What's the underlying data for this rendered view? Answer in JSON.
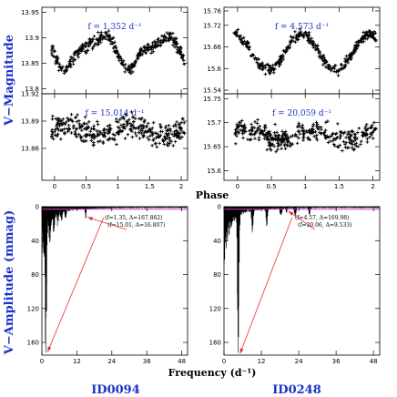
{
  "labels": {
    "v_magnitude": "V−Magnitude",
    "phase": "Phase",
    "v_amplitude": "V−Amplitude (mmag)",
    "frequency": "Frequency (d⁻¹)",
    "id_left": "ID0094",
    "id_right": "ID0248"
  },
  "colors": {
    "label_blue": "#1a33c8",
    "data": "#000000",
    "arrow": "#e03030",
    "noise_line": "#d040d0"
  },
  "chart_data": [
    {
      "type": "scatter",
      "panel": "phase-tl",
      "annotation": "f = 1.352 d⁻¹",
      "xlim": [
        -0.2,
        2.1
      ],
      "ylim": [
        13.96,
        13.79
      ],
      "xticks": [
        0,
        0.5,
        1,
        1.5,
        2
      ],
      "xtick_labels": [
        "0",
        "0.5",
        "1",
        "1.5",
        "2"
      ],
      "yticks": [
        13.8,
        13.85,
        13.9,
        13.95
      ],
      "ytick_labels": [
        "13.8",
        "13.85",
        "13.9",
        "13.95"
      ],
      "curve": {
        "mean": 13.875,
        "harmonics": [
          [
            1,
            -0.028,
            0.3
          ],
          [
            2,
            -0.01,
            0.0
          ]
        ],
        "scatter": 0.011
      }
    },
    {
      "type": "scatter",
      "panel": "phase-tr",
      "annotation": "f = 4.573 d⁻¹",
      "xlim": [
        -0.2,
        2.1
      ],
      "ylim": [
        15.77,
        15.53
      ],
      "xticks": [
        0,
        0.5,
        1,
        1.5,
        2
      ],
      "xtick_labels": [
        "0",
        "0.5",
        "1",
        "1.5",
        "2"
      ],
      "yticks": [
        15.54,
        15.6,
        15.66,
        15.72,
        15.76
      ],
      "ytick_labels": [
        "15.54",
        "15.6",
        "15.66",
        "15.72",
        "15.76"
      ],
      "curve": {
        "mean": 15.645,
        "harmonics": [
          [
            1,
            0.05,
            1.9
          ]
        ],
        "scatter": 0.013
      }
    },
    {
      "type": "scatter",
      "panel": "phase-bl",
      "annotation": "f = 15.014 d⁻¹",
      "xlim": [
        -0.2,
        2.1
      ],
      "ylim": [
        13.92,
        13.825
      ],
      "xticks": [
        0,
        0.5,
        1,
        1.5,
        2
      ],
      "xtick_labels": [
        "0",
        "0.5",
        "1",
        "1.5",
        "2"
      ],
      "yticks": [
        13.86,
        13.89,
        13.92
      ],
      "ytick_labels": [
        "13.86",
        "13.89",
        "13.92"
      ],
      "curve": {
        "mean": 13.88,
        "harmonics": [
          [
            1,
            0.006,
            0.2
          ]
        ],
        "scatter": 0.013
      }
    },
    {
      "type": "scatter",
      "panel": "phase-br",
      "annotation": "f = 20.059 d⁻¹",
      "xlim": [
        -0.2,
        2.1
      ],
      "ylim": [
        15.76,
        15.58
      ],
      "xticks": [
        0,
        0.5,
        1,
        1.5,
        2
      ],
      "xtick_labels": [
        "0",
        "0.5",
        "1",
        "1.5",
        "2"
      ],
      "yticks": [
        15.6,
        15.65,
        15.7,
        15.75
      ],
      "ytick_labels": [
        "15.6",
        "15.65",
        "15.7",
        "15.75"
      ],
      "curve": {
        "mean": 15.675,
        "harmonics": [
          [
            1,
            0.01,
            0.8
          ]
        ],
        "scatter": 0.02
      }
    },
    {
      "type": "line",
      "panel": "amp-left",
      "xlim": [
        0,
        50
      ],
      "ylim": [
        0,
        175
      ],
      "xticks": [
        0,
        12,
        24,
        36,
        48
      ],
      "xtick_labels": [
        "0",
        "12",
        "24",
        "36",
        "48"
      ],
      "yticks": [
        0,
        40,
        80,
        120,
        160
      ],
      "ytick_labels": [
        "0",
        "40",
        "80",
        "120",
        "160"
      ],
      "annotation_1": "(f=1.35, A=167.862)",
      "annotation_2": "(f=15.01, A=16.807)",
      "peaks": [
        {
          "f": 1.35,
          "A": 167.862
        },
        {
          "f": 15.01,
          "A": 16.807
        }
      ],
      "noise_level": 3
    },
    {
      "type": "line",
      "panel": "amp-right",
      "xlim": [
        0,
        50
      ],
      "ylim": [
        0,
        175
      ],
      "xticks": [
        0,
        12,
        24,
        36,
        48
      ],
      "xtick_labels": [
        "0",
        "12",
        "24",
        "36",
        "48"
      ],
      "yticks": [
        0,
        40,
        80,
        120,
        160
      ],
      "ytick_labels": [
        "0",
        "40",
        "80",
        "120",
        "160"
      ],
      "annotation_1": "(f=4.57, A=169.98)",
      "annotation_2": "(f=20.06, A=9.533)",
      "peaks": [
        {
          "f": 4.57,
          "A": 169.98
        },
        {
          "f": 20.06,
          "A": 9.533
        }
      ],
      "noise_level": 3
    }
  ]
}
